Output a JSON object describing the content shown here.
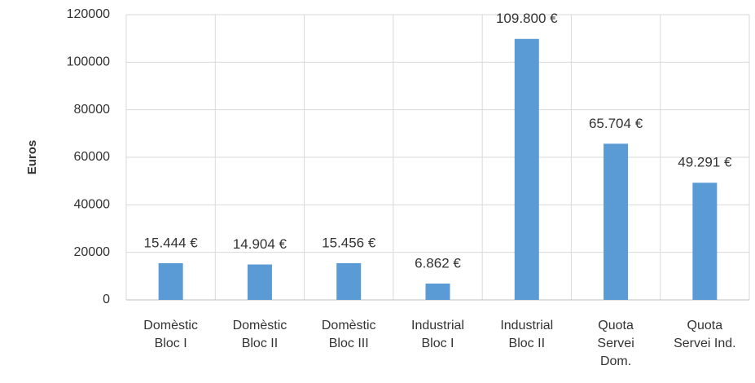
{
  "chart_data": {
    "type": "bar",
    "y_label": "Euros",
    "categories": [
      [
        "Domèstic",
        "Bloc I"
      ],
      [
        "Domèstic",
        "Bloc II"
      ],
      [
        "Domèstic",
        "Bloc III"
      ],
      [
        "Industrial",
        "Bloc I"
      ],
      [
        "Industrial",
        "Bloc II"
      ],
      [
        "Quota",
        "Servei",
        "Dom."
      ],
      [
        "Quota",
        "Servei Ind."
      ]
    ],
    "values": [
      15444,
      14904,
      15456,
      6862,
      109800,
      65704,
      49291
    ],
    "value_labels": [
      "15.444 €",
      "14.904 €",
      "15.456 €",
      "6.862 €",
      "109.800 €",
      "65.704 €",
      "49.291 €"
    ],
    "color": "#5b9bd5",
    "ylim": [
      0,
      120000
    ],
    "yticks": [
      0,
      20000,
      40000,
      60000,
      80000,
      100000,
      120000
    ],
    "grid": true
  }
}
